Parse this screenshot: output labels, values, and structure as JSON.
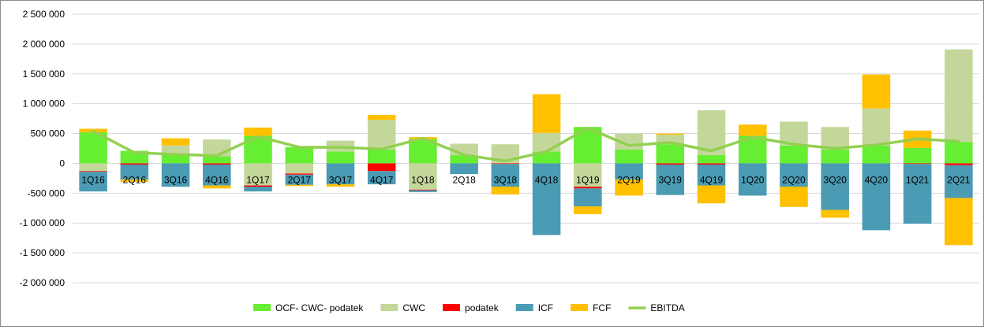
{
  "chart_data": {
    "type": "bar",
    "stacked": true,
    "categories": [
      "1Q16",
      "2Q16",
      "3Q16",
      "4Q16",
      "1Q17",
      "2Q17",
      "3Q17",
      "4Q17",
      "1Q18",
      "2Q18",
      "3Q18",
      "4Q18",
      "1Q19",
      "2Q19",
      "3Q19",
      "4Q19",
      "1Q20",
      "2Q20",
      "3Q20",
      "4Q20",
      "1Q21",
      "2Q21"
    ],
    "ylim": [
      -2000000,
      2500000
    ],
    "yticks": [
      2500000,
      2000000,
      1500000,
      1000000,
      500000,
      0,
      -500000,
      -1000000,
      -1500000,
      -2000000
    ],
    "ytick_labels": [
      "2 500 000",
      "2 000 000",
      "1 500 000",
      "1 000 000",
      "500 000",
      "0",
      "-500 000",
      "-1 000 000",
      "-1 500 000",
      "-2 000 000"
    ],
    "grid": true,
    "legend_position": "bottom",
    "series": [
      {
        "name": "OCF- CWC- podatek",
        "color": "#66ee33",
        "type": "bar",
        "values": [
          520000,
          210000,
          140000,
          120000,
          460000,
          270000,
          200000,
          230000,
          410000,
          140000,
          0,
          200000,
          610000,
          230000,
          320000,
          140000,
          460000,
          300000,
          230000,
          300000,
          260000,
          360000
        ]
      },
      {
        "name": "CWC",
        "color": "#c4d79b",
        "type": "bar",
        "values": [
          -130000,
          0,
          160000,
          280000,
          -370000,
          -170000,
          180000,
          500000,
          -440000,
          190000,
          320000,
          310000,
          -390000,
          270000,
          160000,
          750000,
          0,
          400000,
          380000,
          620000,
          0,
          1550000
        ]
      },
      {
        "name": "podatek",
        "color": "#ff0000",
        "type": "bar",
        "values": [
          -10000,
          -20000,
          0,
          -20000,
          -20000,
          -20000,
          0,
          -130000,
          -10000,
          0,
          -10000,
          0,
          -30000,
          0,
          -20000,
          -20000,
          0,
          0,
          0,
          0,
          -10000,
          -30000
        ]
      },
      {
        "name": "ICF",
        "color": "#4a9bb3",
        "type": "bar",
        "values": [
          -330000,
          -250000,
          -390000,
          -350000,
          -80000,
          -170000,
          -350000,
          -220000,
          -30000,
          -180000,
          -380000,
          -1200000,
          -300000,
          -270000,
          -510000,
          -350000,
          -540000,
          -390000,
          -780000,
          -1120000,
          -1000000,
          -550000
        ]
      },
      {
        "name": "FCF",
        "color": "#ffc000",
        "type": "bar",
        "values": [
          60000,
          -40000,
          120000,
          -50000,
          140000,
          -20000,
          -40000,
          80000,
          30000,
          0,
          -130000,
          650000,
          -130000,
          -270000,
          20000,
          -300000,
          190000,
          -340000,
          -130000,
          570000,
          290000,
          -790000
        ]
      },
      {
        "name": "EBITDA",
        "color": "#92d050",
        "type": "line",
        "values": [
          540000,
          180000,
          150000,
          130000,
          450000,
          270000,
          270000,
          240000,
          420000,
          140000,
          40000,
          200000,
          590000,
          300000,
          350000,
          210000,
          440000,
          320000,
          250000,
          310000,
          410000,
          370000
        ]
      }
    ]
  }
}
